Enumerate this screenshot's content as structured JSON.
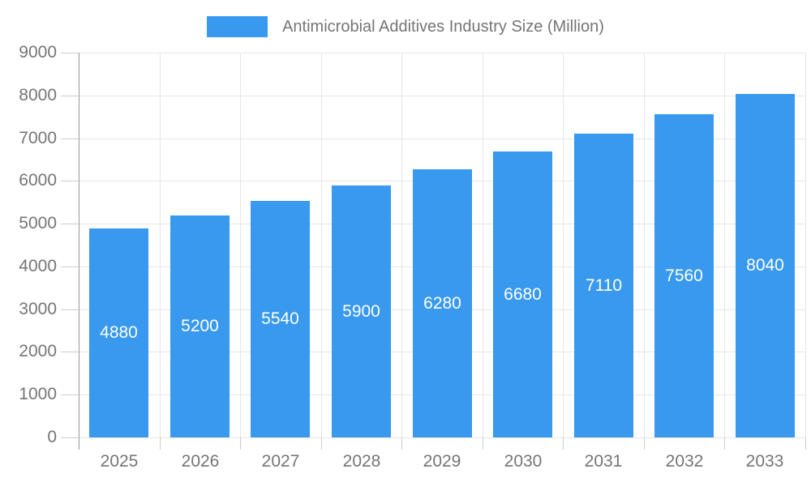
{
  "legend": {
    "label": "Antimicrobial Additives Industry Size (Million)"
  },
  "chart_data": {
    "type": "bar",
    "title": "Antimicrobial Additives Industry Size (Million)",
    "categories": [
      "2025",
      "2026",
      "2027",
      "2028",
      "2029",
      "2030",
      "2031",
      "2032",
      "2033"
    ],
    "values": [
      4880,
      5200,
      5540,
      5900,
      6280,
      6680,
      7110,
      7560,
      8040
    ],
    "xlabel": "",
    "ylabel": "",
    "ylim": [
      0,
      9000
    ],
    "yticks": [
      0,
      1000,
      2000,
      3000,
      4000,
      5000,
      6000,
      7000,
      8000,
      9000
    ],
    "grid": true,
    "legend_position": "top",
    "value_labels": "inside-center"
  },
  "colors": {
    "bar": "#3899EE",
    "grid": "#E6E6E6",
    "axis": "#999999",
    "tick": "#CCCCCC",
    "text": "#757575",
    "value_label": "#FFFFFF",
    "background": "#FFFFFF"
  }
}
